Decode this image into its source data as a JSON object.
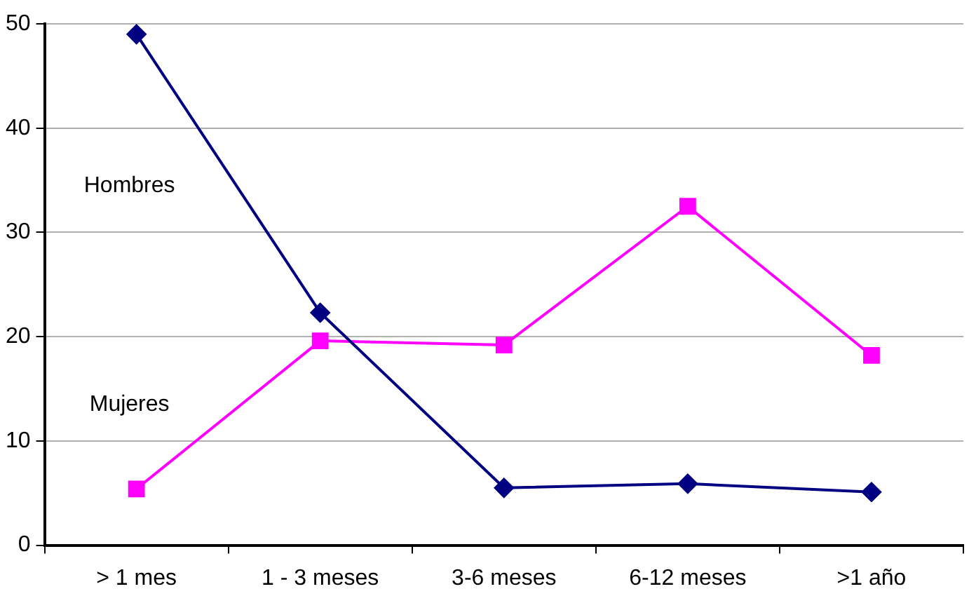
{
  "chart_data": {
    "type": "line",
    "categories": [
      "> 1 mes",
      "1 - 3 meses",
      "3-6 meses",
      "6-12 meses",
      ">1 año"
    ],
    "series": [
      {
        "name": "Hombres",
        "color": "#000080",
        "marker": "diamond",
        "values": [
          49,
          22.3,
          5.5,
          5.9,
          5.1
        ]
      },
      {
        "name": "Mujeres",
        "color": "#ff00ff",
        "marker": "square",
        "values": [
          5.4,
          19.6,
          19.2,
          32.5,
          18.2
        ]
      }
    ],
    "ylim": [
      0,
      50
    ],
    "yticks": [
      0,
      10,
      20,
      30,
      40,
      50
    ],
    "grid": "y",
    "legend": false
  }
}
